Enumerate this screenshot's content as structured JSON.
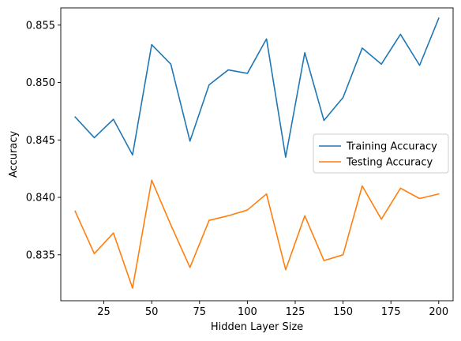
{
  "chart_data": {
    "type": "line",
    "title": "",
    "xlabel": "Hidden Layer Size",
    "ylabel": "Accuracy",
    "x": [
      10,
      20,
      30,
      40,
      50,
      60,
      70,
      80,
      90,
      100,
      110,
      120,
      130,
      140,
      150,
      160,
      170,
      180,
      190,
      200
    ],
    "xlim": [
      2.5,
      207.5
    ],
    "ylim": [
      0.831,
      0.8565
    ],
    "xticks": [
      25,
      50,
      75,
      100,
      125,
      150,
      175,
      200
    ],
    "yticks": [
      0.835,
      0.84,
      0.845,
      0.85,
      0.855
    ],
    "xtick_labels": [
      "25",
      "50",
      "75",
      "100",
      "125",
      "150",
      "175",
      "200"
    ],
    "ytick_labels": [
      "0.835",
      "0.840",
      "0.845",
      "0.850",
      "0.855"
    ],
    "grid": false,
    "legend_position": "center-right",
    "series": [
      {
        "name": "Training Accuracy",
        "color": "#1f77b4",
        "values": [
          0.847,
          0.8452,
          0.8468,
          0.8437,
          0.8533,
          0.8516,
          0.8449,
          0.8498,
          0.8511,
          0.8508,
          0.8538,
          0.8435,
          0.8526,
          0.8467,
          0.8487,
          0.853,
          0.8516,
          0.8542,
          0.8515,
          0.8556
        ]
      },
      {
        "name": "Testing Accuracy",
        "color": "#ff7f0e",
        "values": [
          0.8388,
          0.8351,
          0.8369,
          0.8321,
          0.8415,
          0.8376,
          0.8339,
          0.838,
          0.8384,
          0.8389,
          0.8403,
          0.8337,
          0.8384,
          0.8345,
          0.835,
          0.841,
          0.8381,
          0.8408,
          0.8399,
          0.8403
        ]
      }
    ]
  }
}
